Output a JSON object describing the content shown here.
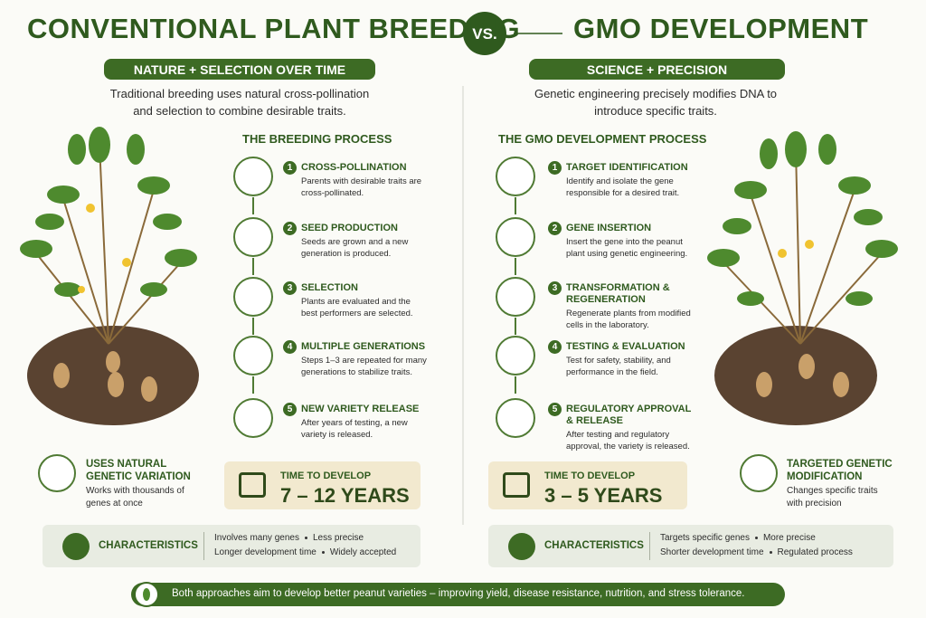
{
  "header": {
    "left_title": "CONVENTIONAL PLANT BREEDING",
    "vs": "VS.",
    "right_title": "GMO DEVELOPMENT"
  },
  "left": {
    "banner": "NATURE + SELECTION OVER TIME",
    "intro": "Traditional breeding uses natural cross-pollination and selection to combine desirable traits.",
    "process_title": "THE BREEDING PROCESS",
    "steps": [
      {
        "number": 1,
        "title": "CROSS-POLLINATION",
        "text": "Parents with desirable traits are cross-pollinated."
      },
      {
        "number": 2,
        "title": "SEED PRODUCTION",
        "text": "Seeds are grown and a new generation is produced."
      },
      {
        "number": 3,
        "title": "SELECTION",
        "text": "Plants are evaluated and the best performers are selected."
      },
      {
        "number": 4,
        "title": "MULTIPLE GENERATIONS",
        "text": "Steps 1–3 are repeated for many generations to stabilize traits."
      },
      {
        "number": 5,
        "title": "NEW VARIETY RELEASE",
        "text": "After years of testing, a new variety is released."
      }
    ],
    "feature": {
      "title": "USES NATURAL GENETIC VARIATION",
      "text": "Works with thousands of genes at once"
    },
    "time": {
      "label": "TIME TO DEVELOP",
      "value": "7 – 12 YEARS"
    },
    "characteristics": {
      "label": "CHARACTERISTICS",
      "items": [
        [
          "Involves many genes",
          "Less precise"
        ],
        [
          "Longer development time",
          "Widely accepted"
        ]
      ]
    }
  },
  "right": {
    "banner": "SCIENCE + PRECISION",
    "intro": "Genetic engineering precisely modifies DNA to introduce specific traits.",
    "process_title": "THE GMO DEVELOPMENT PROCESS",
    "steps": [
      {
        "number": 1,
        "title": "TARGET IDENTIFICATION",
        "text": "Identify and isolate the gene responsible for a desired trait."
      },
      {
        "number": 2,
        "title": "GENE INSERTION",
        "text": "Insert the gene into the peanut plant using genetic engineering."
      },
      {
        "number": 3,
        "title": "TRANSFORMATION & REGENERATION",
        "text": "Regenerate plants from modified cells in the laboratory."
      },
      {
        "number": 4,
        "title": "TESTING & EVALUATION",
        "text": "Test for safety, stability, and performance in the field."
      },
      {
        "number": 5,
        "title": "REGULATORY APPROVAL & RELEASE",
        "text": "After testing and regulatory approval, the variety is released."
      }
    ],
    "feature": {
      "title": "TARGETED GENETIC MODIFICATION",
      "text": "Changes specific traits with precision"
    },
    "time": {
      "label": "TIME TO DEVELOP",
      "value": "3 – 5 YEARS"
    },
    "characteristics": {
      "label": "CHARACTERISTICS",
      "items": [
        [
          "Targets specific genes",
          "More precise"
        ],
        [
          "Shorter development time",
          "Regulated process"
        ]
      ]
    }
  },
  "footer": "Both approaches aim to develop better peanut varieties – improving yield, disease resistance, nutrition, and stress tolerance."
}
